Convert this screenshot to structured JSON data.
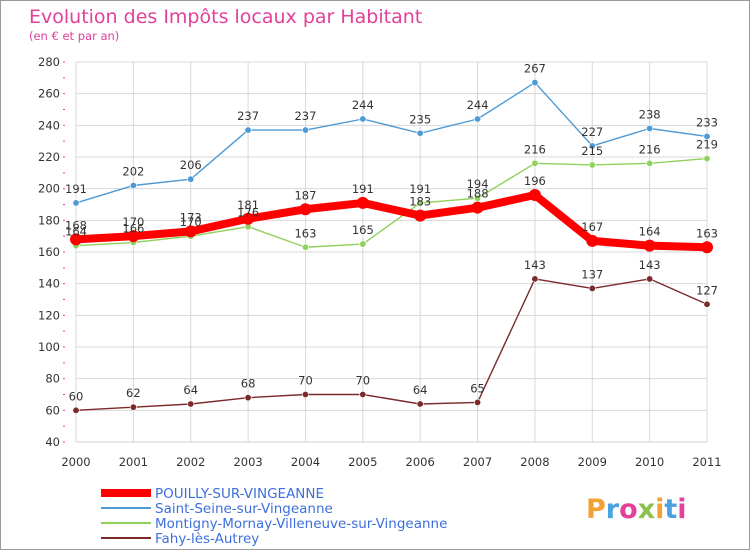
{
  "chart_data": {
    "type": "line",
    "title": "Evolution des Impôts locaux par Habitant",
    "subtitle": "(en € et par an)",
    "x": [
      "2000",
      "2001",
      "2002",
      "2003",
      "2004",
      "2005",
      "2006",
      "2007",
      "2008",
      "2009",
      "2010",
      "2011"
    ],
    "ylim": [
      40,
      280
    ],
    "yticks": [
      40,
      60,
      80,
      100,
      120,
      140,
      160,
      180,
      200,
      220,
      240,
      260,
      280
    ],
    "grid": true,
    "legend_position": "bottom-left",
    "series": [
      {
        "name": "POUILLY-SUR-VINGEANNE",
        "color": "#ff0000",
        "highlight": true,
        "values": [
          168,
          170,
          173,
          181,
          187,
          191,
          183,
          188,
          196,
          167,
          164,
          163
        ]
      },
      {
        "name": "Saint-Seine-sur-Vingeanne",
        "color": "#4d9ad4",
        "values": [
          191,
          202,
          206,
          237,
          237,
          244,
          235,
          244,
          267,
          227,
          238,
          233
        ]
      },
      {
        "name": "Montigny-Mornay-Villeneuve-sur-Vingeanne",
        "color": "#8fd15a",
        "values": [
          164,
          166,
          170,
          176,
          163,
          165,
          191,
          194,
          216,
          215,
          216,
          219
        ]
      },
      {
        "name": "Fahy-lès-Autrey",
        "color": "#7a2a2a",
        "values": [
          60,
          62,
          64,
          68,
          70,
          70,
          64,
          65,
          143,
          137,
          143,
          127
        ]
      }
    ]
  },
  "watermark": "Proxiti"
}
